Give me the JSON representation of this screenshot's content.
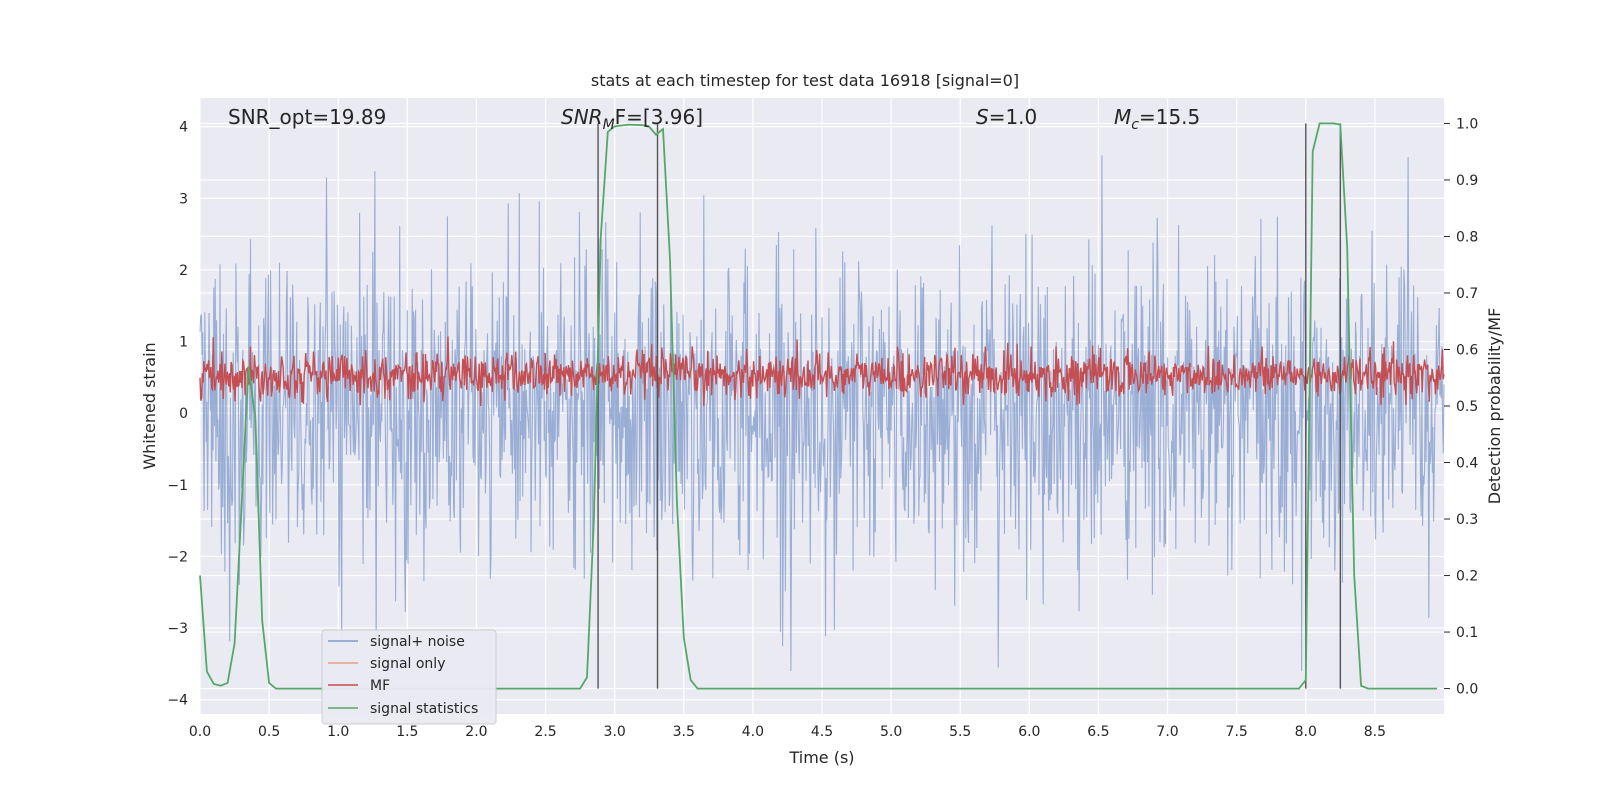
{
  "chart_data": {
    "type": "line",
    "title": "stats at each timestep for test data 16918 [signal=0]",
    "xlabel": "Time (s)",
    "ylabel_left": "Whitened strain",
    "ylabel_right": "Detection probability/MF",
    "xlim": [
      0.0,
      9.0
    ],
    "ylim_left": [
      -4.2,
      4.4
    ],
    "ylim_right": [
      -0.045,
      1.045
    ],
    "x_ticks": [
      "0.0",
      "0.5",
      "1.0",
      "1.5",
      "2.0",
      "2.5",
      "3.0",
      "3.5",
      "4.0",
      "4.5",
      "5.0",
      "5.5",
      "6.0",
      "6.5",
      "7.0",
      "7.5",
      "8.0",
      "8.5"
    ],
    "y_left_ticks": [
      "4",
      "3",
      "2",
      "1",
      "0",
      "−1",
      "−2",
      "−3",
      "−4"
    ],
    "y_right_ticks": [
      "1.0",
      "0.9",
      "0.8",
      "0.7",
      "0.6",
      "0.5",
      "0.4",
      "0.3",
      "0.2",
      "0.1",
      "0.0"
    ],
    "annotations": {
      "snr_opt": "SNR_opt=19.89",
      "snr_mf_base": "SNR",
      "snr_mf_sub": "M",
      "snr_mf_rest": "F=[3.96]",
      "s_sym": "S",
      "s_val": "=1.0",
      "mc_sym": "M",
      "mc_sub": "c",
      "mc_val": "=15.5"
    },
    "legend": [
      "signal+ noise",
      "signal only",
      "MF",
      "signal statistics"
    ],
    "colors": {
      "noise": "#7f9acb",
      "signal_only": "#e8a07f",
      "mf": "#c44e52",
      "stats": "#55a868",
      "vline": "#555555",
      "background": "#eaeaf2",
      "grid": "#ffffff"
    },
    "series": [
      {
        "name": "signal+ noise",
        "description": "whitened strain noise, amplitude mostly within -2 to 2, spikes up to about 3.5 and down to about -3.4",
        "center": 0.0,
        "spread": 1.1
      },
      {
        "name": "MF",
        "axis": "right",
        "description": "matched filter output fluctuating around 0.55 on the right axis, range approx 0.50 to 0.62",
        "center": 0.555,
        "spread": 0.02
      },
      {
        "name": "signal statistics",
        "axis": "right",
        "x": [
          0.0,
          0.05,
          0.1,
          0.15,
          0.2,
          0.25,
          0.3,
          0.35,
          0.4,
          0.45,
          0.5,
          0.55,
          0.6,
          0.65,
          0.7,
          1.0,
          1.5,
          2.0,
          2.5,
          2.7,
          2.75,
          2.8,
          2.85,
          2.9,
          2.95,
          3.0,
          3.1,
          3.2,
          3.25,
          3.3,
          3.35,
          3.4,
          3.45,
          3.5,
          3.55,
          3.6,
          4.0,
          5.0,
          6.0,
          7.0,
          7.5,
          7.9,
          7.95,
          8.0,
          8.05,
          8.1,
          8.15,
          8.2,
          8.25,
          8.3,
          8.35,
          8.4,
          8.45,
          8.5,
          8.6,
          8.7,
          8.8,
          8.9,
          8.95
        ],
        "y": [
          0.2,
          0.03,
          0.008,
          0.005,
          0.01,
          0.08,
          0.32,
          0.57,
          0.48,
          0.12,
          0.01,
          0.0,
          0.0,
          0.0,
          0.0,
          0.0,
          0.0,
          0.0,
          0.0,
          0.0,
          0.0,
          0.02,
          0.3,
          0.8,
          0.985,
          0.995,
          0.998,
          0.997,
          0.994,
          0.98,
          0.99,
          0.76,
          0.33,
          0.09,
          0.015,
          0.0,
          0.0,
          0.0,
          0.0,
          0.0,
          0.0,
          0.0,
          0.0,
          0.015,
          0.95,
          1.0,
          1.0,
          1.0,
          0.998,
          0.78,
          0.2,
          0.005,
          0.0,
          0.0,
          0.0,
          0.0,
          0.0,
          0.0,
          0.0
        ]
      }
    ],
    "vertical_lines": [
      2.88,
      3.31,
      8.0,
      8.25
    ]
  }
}
